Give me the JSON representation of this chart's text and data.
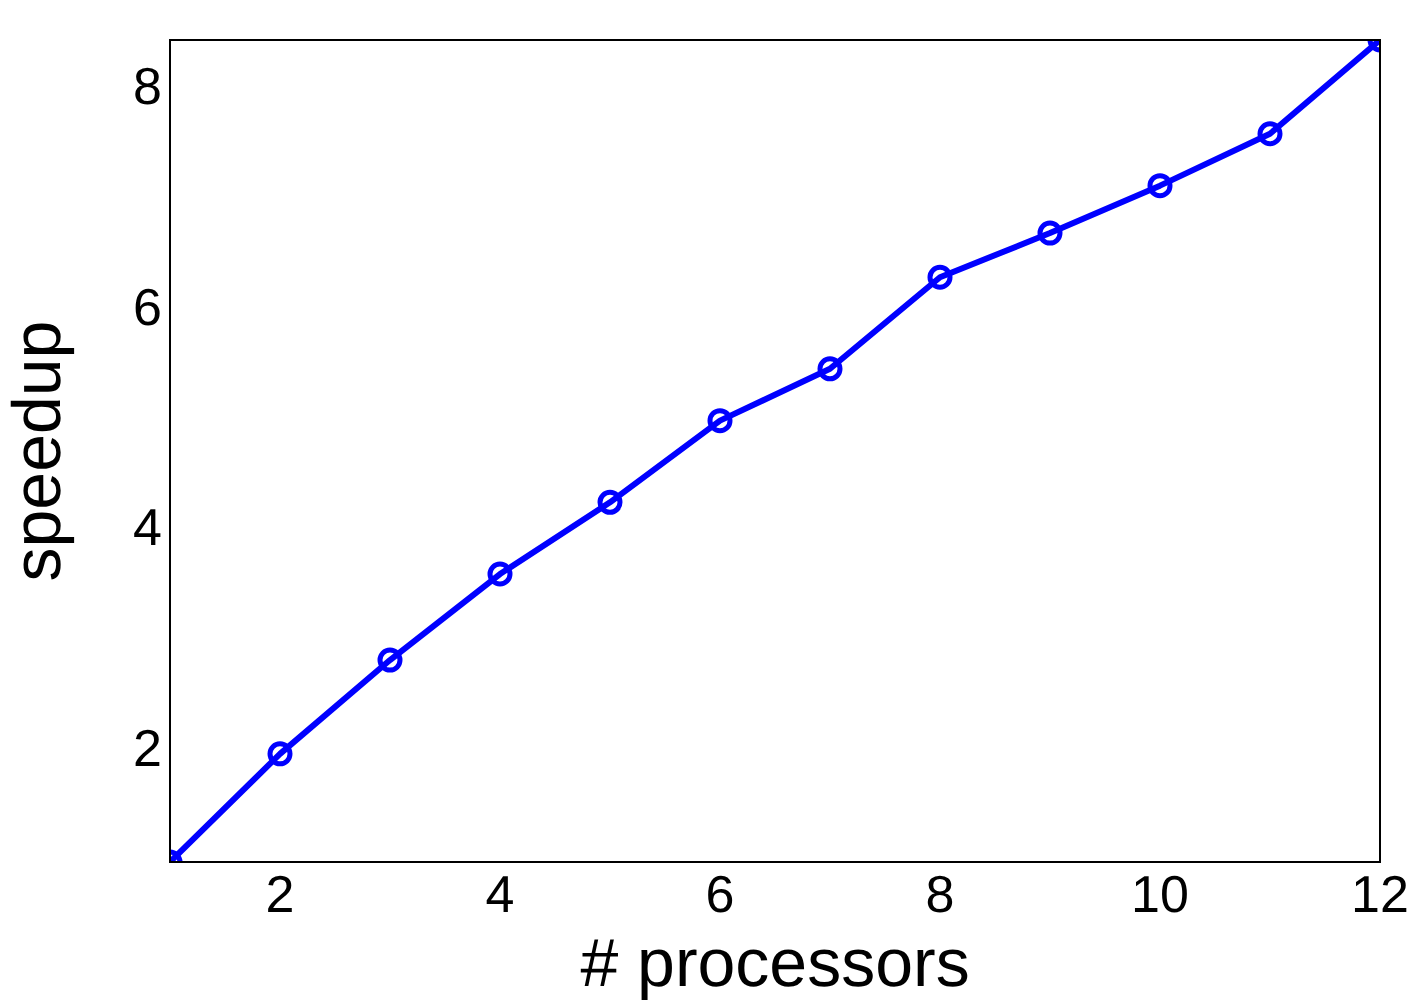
{
  "chart_data": {
    "type": "line",
    "xlabel": "# processors",
    "ylabel": "speedup",
    "x": [
      1,
      2,
      3,
      4,
      5,
      6,
      7,
      8,
      9,
      10,
      11,
      12
    ],
    "series": [
      {
        "color": "#0000ff",
        "values": [
          1.0,
          1.98,
          2.83,
          3.61,
          4.26,
          5.0,
          5.47,
          6.3,
          6.7,
          7.13,
          7.6,
          8.45
        ]
      }
    ],
    "xlim": [
      1,
      12
    ],
    "xticks": [
      2,
      4,
      6,
      8,
      10,
      12
    ],
    "ylim": [
      1,
      8.45
    ],
    "yticks": [
      2,
      4,
      6,
      8
    ],
    "grid": false,
    "legend": false,
    "marker": "circle",
    "line_style": "solid"
  }
}
